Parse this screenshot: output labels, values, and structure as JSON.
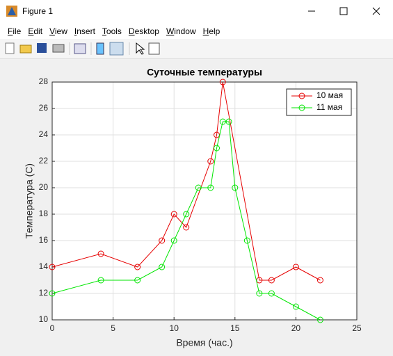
{
  "window": {
    "title": "Figure 1",
    "menu": [
      "File",
      "Edit",
      "View",
      "Insert",
      "Tools",
      "Desktop",
      "Window",
      "Help"
    ]
  },
  "chart_data": {
    "type": "line",
    "title": "Суточные температуры",
    "x_label": "Время (час.)",
    "y_label": "Температура (C)",
    "xlim": [
      0,
      25
    ],
    "xticks": [
      0,
      5,
      10,
      15,
      20,
      25
    ],
    "ylim": [
      10,
      28
    ],
    "yticks": [
      10,
      12,
      14,
      16,
      18,
      20,
      22,
      24,
      26,
      28
    ],
    "grid": true,
    "legend": "top-right",
    "marker": "circle",
    "series": [
      {
        "name": "10 мая",
        "color": "#e60000",
        "x": [
          0,
          4,
          7,
          9,
          10,
          11,
          13,
          13.5,
          14,
          17,
          18,
          20,
          22
        ],
        "values": [
          14,
          15,
          14,
          16,
          18,
          17,
          22,
          24,
          28,
          13,
          13,
          14,
          13
        ]
      },
      {
        "name": "11 мая",
        "color": "#00e600",
        "x": [
          0,
          4,
          7,
          9,
          10,
          11,
          12,
          13,
          13.5,
          14,
          14.5,
          15,
          16,
          17,
          18,
          20,
          22
        ],
        "values": [
          12,
          13,
          13,
          14,
          16,
          18,
          20,
          20,
          23,
          25,
          25,
          20,
          16,
          12,
          12,
          11,
          10
        ]
      }
    ]
  }
}
